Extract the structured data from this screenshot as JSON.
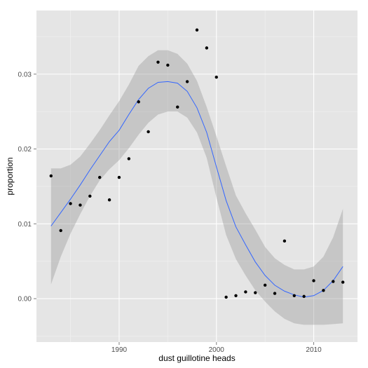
{
  "chart_data": {
    "type": "scatter",
    "title": "",
    "xlabel": "dust guillotine heads",
    "ylabel": "proportion",
    "xlim": [
      1981.5,
      2014.5
    ],
    "ylim": [
      -0.0058,
      0.0385
    ],
    "x_ticks": [
      1990,
      2000,
      2010
    ],
    "x_tick_labels": [
      "1990",
      "2000",
      "2010"
    ],
    "y_ticks": [
      0.0,
      0.01,
      0.02,
      0.03
    ],
    "y_tick_labels": [
      "0.00",
      "0.01",
      "0.02",
      "0.03"
    ],
    "grid": true,
    "legend": "none",
    "colors": {
      "panel": "#e5e5e5",
      "grid_major": "#ffffff",
      "points": "#000000",
      "smooth_line": "#3366ff",
      "confidence_band": "#999999"
    },
    "points": [
      {
        "x": 1983,
        "y": 0.0164
      },
      {
        "x": 1984,
        "y": 0.0091
      },
      {
        "x": 1985,
        "y": 0.0127
      },
      {
        "x": 1986,
        "y": 0.0125
      },
      {
        "x": 1987,
        "y": 0.0137
      },
      {
        "x": 1988,
        "y": 0.0162
      },
      {
        "x": 1989,
        "y": 0.0132
      },
      {
        "x": 1990,
        "y": 0.0162
      },
      {
        "x": 1991,
        "y": 0.0187
      },
      {
        "x": 1992,
        "y": 0.0263
      },
      {
        "x": 1993,
        "y": 0.0223
      },
      {
        "x": 1994,
        "y": 0.0316
      },
      {
        "x": 1995,
        "y": 0.0312
      },
      {
        "x": 1996,
        "y": 0.0256
      },
      {
        "x": 1997,
        "y": 0.029
      },
      {
        "x": 1998,
        "y": 0.0359
      },
      {
        "x": 1999,
        "y": 0.0335
      },
      {
        "x": 2000,
        "y": 0.0296
      },
      {
        "x": 2001,
        "y": 0.0002
      },
      {
        "x": 2002,
        "y": 0.0004
      },
      {
        "x": 2003,
        "y": 0.0009
      },
      {
        "x": 2004,
        "y": 0.0008
      },
      {
        "x": 2005,
        "y": 0.0018
      },
      {
        "x": 2006,
        "y": 0.0007
      },
      {
        "x": 2007,
        "y": 0.0077
      },
      {
        "x": 2008,
        "y": 0.0004
      },
      {
        "x": 2009,
        "y": 0.0003
      },
      {
        "x": 2010,
        "y": 0.0024
      },
      {
        "x": 2011,
        "y": 0.0011
      },
      {
        "x": 2012,
        "y": 0.0023
      },
      {
        "x": 2013,
        "y": 0.0022
      }
    ],
    "smooth": {
      "x": [
        1983,
        1984,
        1985,
        1986,
        1987,
        1988,
        1989,
        1990,
        1991,
        1992,
        1993,
        1994,
        1995,
        1996,
        1997,
        1998,
        1999,
        2000,
        2001,
        2002,
        2003,
        2004,
        2005,
        2006,
        2007,
        2008,
        2009,
        2010,
        2011,
        2012,
        2013
      ],
      "y": [
        0.0097,
        0.0115,
        0.0133,
        0.0152,
        0.0172,
        0.0191,
        0.021,
        0.0225,
        0.0246,
        0.0266,
        0.0281,
        0.0289,
        0.029,
        0.0288,
        0.0277,
        0.0255,
        0.0222,
        0.0176,
        0.0131,
        0.0096,
        0.0072,
        0.0049,
        0.0031,
        0.0018,
        0.001,
        0.0005,
        0.0002,
        0.0004,
        0.0011,
        0.0024,
        0.0043
      ],
      "lower": [
        0.0019,
        0.0056,
        0.0087,
        0.0113,
        0.0137,
        0.0158,
        0.0173,
        0.0185,
        0.0201,
        0.0219,
        0.0235,
        0.0246,
        0.025,
        0.025,
        0.0242,
        0.0222,
        0.0188,
        0.0135,
        0.0085,
        0.0053,
        0.0031,
        0.0011,
        -0.0004,
        -0.0017,
        -0.0027,
        -0.0033,
        -0.0035,
        -0.0035,
        -0.0035,
        -0.0034,
        -0.0033
      ],
      "upper": [
        0.0174,
        0.0174,
        0.0179,
        0.019,
        0.0207,
        0.0225,
        0.0245,
        0.0264,
        0.0286,
        0.0311,
        0.0324,
        0.0332,
        0.0332,
        0.0327,
        0.0314,
        0.0291,
        0.0256,
        0.0217,
        0.0177,
        0.0138,
        0.0114,
        0.0092,
        0.0069,
        0.0054,
        0.0045,
        0.0039,
        0.0039,
        0.0043,
        0.0056,
        0.0082,
        0.012
      ]
    }
  }
}
